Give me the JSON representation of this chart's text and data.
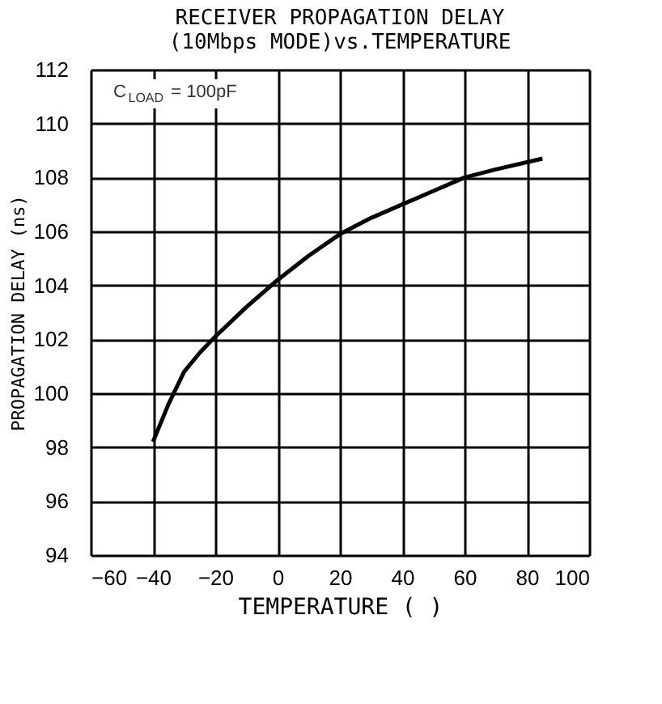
{
  "chart_data": {
    "type": "line",
    "title": [
      "RECEIVER PROPAGATION DELAY",
      "(10Mbps MODE)vs.TEMPERATURE"
    ],
    "xlabel": "TEMPERATURE (   )",
    "ylabel": "PROPAGATION DELAY (ns)",
    "annotations": [
      "C$_{LOAD}$ = 100pF"
    ],
    "series": [
      {
        "color": "#000000",
        "x": [
          -40,
          -35,
          -30,
          -25,
          -20,
          -10,
          0,
          10,
          20,
          30,
          40,
          50,
          60,
          70,
          85
        ],
        "values": [
          98.2,
          99.6,
          100.8,
          101.5,
          102.1,
          103.2,
          104.2,
          105.1,
          105.9,
          106.5,
          107.0,
          107.5,
          108.0,
          108.3,
          108.7
        ]
      }
    ],
    "xlim": [
      -60,
      100
    ],
    "xticks": [
      -60,
      -40,
      -20,
      0,
      20,
      40,
      60,
      80,
      100
    ],
    "ylim": [
      94,
      112
    ],
    "yticks": [
      94,
      96,
      98,
      100,
      102,
      104,
      106,
      108,
      110,
      112
    ],
    "grid": true,
    "marker": "none",
    "line_style": "solid"
  }
}
